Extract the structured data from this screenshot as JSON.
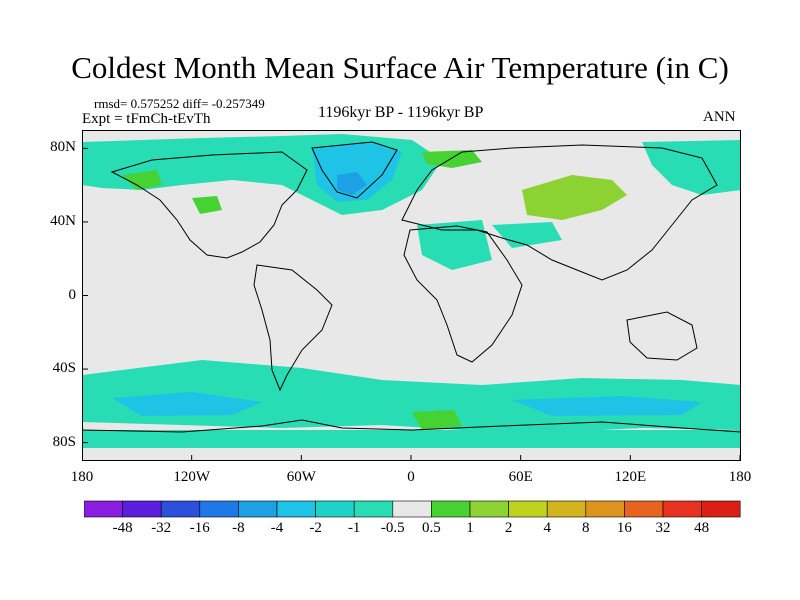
{
  "title": "Coldest Month Mean Surface Air Temperature (in C)",
  "stats": "rmsd= 0.575252 diff= -0.257349",
  "experiment": "Expt = tFmCh-tEvTh",
  "period": "1196kyr BP - 1196kyr BP",
  "season": "ANN",
  "map": {
    "projection": "cylindrical-equidistant",
    "lon_range": [
      -180,
      180
    ],
    "lat_range": [
      -90,
      90
    ],
    "x_tick_labels": [
      "180",
      "120W",
      "60W",
      "0",
      "60E",
      "120E",
      "180"
    ],
    "y_tick_labels": [
      "80N",
      "40N",
      "0",
      "40S",
      "80S"
    ],
    "background_color": "#e8e8e8",
    "coastline_color": "#000000"
  },
  "colorbar": {
    "labels": [
      "-48",
      "-32",
      "-16",
      "-8",
      "-4",
      "-2",
      "-1",
      "-0.5",
      "0.5",
      "1",
      "2",
      "4",
      "8",
      "16",
      "32",
      "48"
    ],
    "colors": [
      "#8a1ee0",
      "#5a1edc",
      "#2a50dc",
      "#1e78e6",
      "#1ea0e6",
      "#1ec3e6",
      "#1ed2c8",
      "#28dcb4",
      "#e8e8e8",
      "#46d232",
      "#8cd232",
      "#bed21e",
      "#d2b41e",
      "#dc961e",
      "#e6641e",
      "#e6321e",
      "#dc1e14"
    ]
  },
  "anomaly_colors": {
    "neg_small": "#28dcb4",
    "neg_mid": "#1ec3e6",
    "neg_large": "#1ea0e6",
    "pos_small": "#46d232",
    "pos_mid": "#8cd232"
  }
}
